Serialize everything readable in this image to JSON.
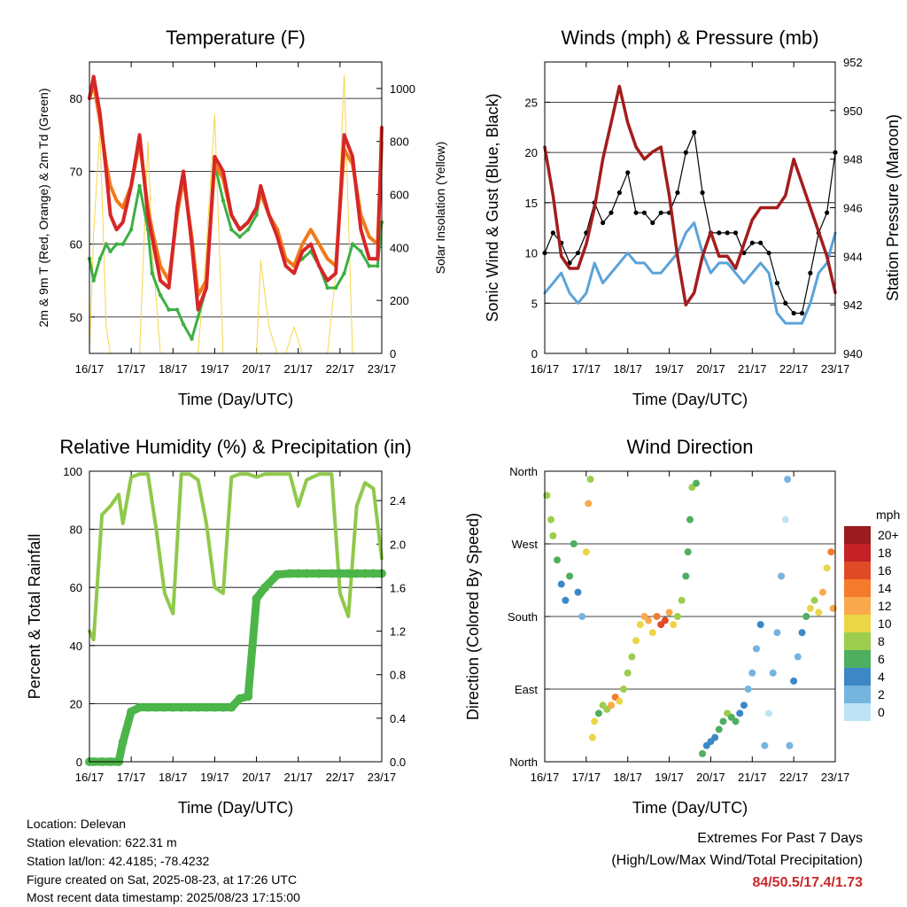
{
  "colors": {
    "temp_red": "#d62728",
    "temp_orange": "#f27a1a",
    "dewpoint_green": "#3cb043",
    "solar_yellow": "#f5d547",
    "wind_blue": "#5ba3d9",
    "gust_black": "#000000",
    "pressure_maroon": "#a31d1d",
    "rh_lightgreen": "#8fc94a",
    "precip_green": "#4cb54a",
    "extremes_red": "#c8282b"
  },
  "time_ticks": [
    "16/17",
    "17/17",
    "18/17",
    "19/17",
    "20/17",
    "21/17",
    "22/17",
    "23/17"
  ],
  "chart_data": [
    {
      "id": "temperature",
      "type": "line",
      "title": "Temperature (F)",
      "xlabel": "Time (Day/UTC)",
      "ylabel": "2m & 9m T (Red, Orange) & 2m Td (Green)",
      "ylabel_right": "Solar Insolation (Yellow)",
      "ylim": [
        45,
        85
      ],
      "yticks": [
        50,
        60,
        70,
        80
      ],
      "ylim_right": [
        0,
        1100
      ],
      "yticks_right": [
        0,
        200,
        400,
        600,
        800,
        1000
      ],
      "x": [
        0,
        0.1,
        0.25,
        0.4,
        0.5,
        0.65,
        0.8,
        1.0,
        1.2,
        1.4,
        1.5,
        1.7,
        1.9,
        2.1,
        2.25,
        2.45,
        2.6,
        2.8,
        3.0,
        3.2,
        3.4,
        3.6,
        3.8,
        4.0,
        4.1,
        4.3,
        4.5,
        4.7,
        4.9,
        5.1,
        5.3,
        5.5,
        5.7,
        5.9,
        6.1,
        6.3,
        6.5,
        6.7,
        6.9,
        7.0
      ],
      "series": [
        {
          "name": "2m T",
          "color": "#d62728",
          "values": [
            80,
            83,
            78,
            70,
            64,
            62,
            63,
            68,
            75,
            64,
            61,
            55,
            54,
            65,
            70,
            60,
            51,
            54,
            72,
            70,
            64,
            62,
            63,
            65,
            68,
            64,
            61,
            57,
            56,
            59,
            60,
            57,
            55,
            56,
            75,
            72,
            62,
            58,
            58,
            76
          ]
        },
        {
          "name": "9m T",
          "color": "#f27a1a",
          "values": [
            80,
            82,
            77,
            71,
            68,
            66,
            65,
            68,
            74,
            65,
            62,
            57,
            55,
            64,
            69,
            61,
            53,
            55,
            71,
            69,
            64,
            62,
            63,
            65,
            67,
            64,
            62,
            58,
            57,
            60,
            62,
            60,
            58,
            57,
            73,
            71,
            64,
            61,
            60,
            74
          ]
        },
        {
          "name": "2m Td",
          "color": "#3cb043",
          "values": [
            58,
            55,
            58,
            60,
            59,
            60,
            60,
            62,
            68,
            62,
            56,
            53,
            51,
            51,
            49,
            47,
            50,
            54,
            71,
            66,
            62,
            61,
            62,
            64,
            67,
            64,
            62,
            58,
            57,
            58,
            59,
            57,
            54,
            54,
            56,
            60,
            59,
            57,
            57,
            63
          ]
        },
        {
          "name": "Solar Insolation",
          "color": "#f5d547",
          "axis": "right",
          "values": [
            0,
            450,
            850,
            100,
            0,
            0,
            0,
            0,
            0,
            800,
            400,
            0,
            0,
            0,
            0,
            0,
            0,
            400,
            900,
            0,
            0,
            0,
            0,
            0,
            350,
            100,
            0,
            0,
            100,
            0,
            0,
            0,
            0,
            300,
            1050,
            0,
            0,
            0,
            0,
            0
          ]
        }
      ]
    },
    {
      "id": "winds",
      "type": "line",
      "title": "Winds (mph) & Pressure (mb)",
      "xlabel": "Time (Day/UTC)",
      "ylabel": "Sonic Wind & Gust (Blue, Black)",
      "ylabel_right": "Station Pressure (Maroon)",
      "ylim": [
        0,
        29
      ],
      "yticks": [
        0,
        5,
        10,
        15,
        20,
        25
      ],
      "ylim_right": [
        940,
        952
      ],
      "yticks_right": [
        940,
        942,
        944,
        946,
        948,
        950,
        952
      ],
      "x": [
        0,
        0.2,
        0.4,
        0.6,
        0.8,
        1.0,
        1.2,
        1.4,
        1.6,
        1.8,
        2.0,
        2.2,
        2.4,
        2.6,
        2.8,
        3.0,
        3.2,
        3.4,
        3.6,
        3.8,
        4.0,
        4.2,
        4.4,
        4.6,
        4.8,
        5.0,
        5.2,
        5.4,
        5.6,
        5.8,
        6.0,
        6.2,
        6.4,
        6.6,
        6.8,
        7.0
      ],
      "series": [
        {
          "name": "Sonic Wind",
          "color": "#5ba3d9",
          "values": [
            6,
            7,
            8,
            6,
            5,
            6,
            9,
            7,
            8,
            9,
            10,
            9,
            9,
            8,
            8,
            9,
            10,
            12,
            13,
            10,
            8,
            9,
            9,
            8,
            7,
            8,
            9,
            8,
            4,
            3,
            3,
            3,
            5,
            8,
            9,
            12
          ]
        },
        {
          "name": "Gust",
          "color": "#000000",
          "values": [
            10,
            12,
            11,
            9,
            10,
            12,
            15,
            13,
            14,
            16,
            18,
            14,
            14,
            13,
            14,
            14,
            16,
            20,
            22,
            16,
            12,
            12,
            12,
            12,
            10,
            11,
            11,
            10,
            7,
            5,
            4,
            4,
            8,
            12,
            14,
            20
          ]
        },
        {
          "name": "Station Pressure",
          "color": "#a31d1d",
          "axis": "right",
          "values": [
            948.5,
            946.5,
            944,
            943.5,
            943.5,
            944.5,
            946,
            948,
            949.5,
            951,
            949.5,
            948.5,
            948,
            948.3,
            948.5,
            946.5,
            944,
            942,
            942.5,
            944,
            945,
            944,
            944,
            943.5,
            944.5,
            945.5,
            946,
            946,
            946,
            946.5,
            948,
            947,
            946,
            945,
            944,
            942.5
          ]
        }
      ]
    },
    {
      "id": "humidity",
      "type": "line",
      "title": "Relative Humidity (%) & Precipitation (in)",
      "xlabel": "Time (Day/UTC)",
      "ylabel": "Percent & Total Rainfall",
      "ylim": [
        0,
        100
      ],
      "yticks": [
        0,
        20,
        40,
        60,
        80,
        100
      ],
      "ylim_right": [
        0,
        2.67
      ],
      "yticks_right": [
        0.0,
        0.4,
        0.8,
        1.2,
        1.6,
        2.0,
        2.4
      ],
      "x": [
        0,
        0.1,
        0.3,
        0.5,
        0.7,
        0.8,
        1.0,
        1.2,
        1.4,
        1.6,
        1.8,
        2.0,
        2.2,
        2.4,
        2.6,
        2.8,
        3.0,
        3.2,
        3.4,
        3.6,
        3.8,
        4.0,
        4.2,
        4.5,
        4.8,
        5.0,
        5.2,
        5.5,
        5.8,
        6.0,
        6.2,
        6.4,
        6.6,
        6.8,
        7.0
      ],
      "series": [
        {
          "name": "Relative Humidity",
          "color": "#8fc94a",
          "values": [
            45,
            42,
            85,
            88,
            92,
            82,
            98,
            99,
            99,
            80,
            58,
            51,
            99,
            99,
            97,
            82,
            60,
            58,
            98,
            99,
            99,
            98,
            99,
            99,
            99,
            88,
            97,
            99,
            99,
            58,
            50,
            88,
            96,
            94,
            70
          ]
        },
        {
          "name": "Total Rainfall",
          "color": "#4cb54a",
          "axis": "right",
          "values": [
            0,
            0,
            0,
            0,
            0,
            0.18,
            0.46,
            0.5,
            0.5,
            0.5,
            0.5,
            0.5,
            0.5,
            0.5,
            0.5,
            0.5,
            0.5,
            0.5,
            0.5,
            0.58,
            0.6,
            1.5,
            1.6,
            1.72,
            1.73,
            1.73,
            1.73,
            1.73,
            1.73,
            1.73,
            1.73,
            1.73,
            1.73,
            1.73,
            1.73
          ]
        }
      ]
    },
    {
      "id": "direction",
      "type": "scatter",
      "title": "Wind Direction",
      "xlabel": "Time (Day/UTC)",
      "ylabel": "Direction (Colored By Speed)",
      "ylim": [
        0,
        360
      ],
      "yticks": [
        0,
        90,
        180,
        270,
        360
      ],
      "ytick_labels": [
        "North",
        "East",
        "South",
        "West",
        "North"
      ],
      "legend_title": "mph",
      "legend_levels": [
        "20+",
        "18",
        "16",
        "14",
        "12",
        "10",
        "8",
        "6",
        "4",
        "2",
        "0"
      ],
      "legend_colors": [
        "#9b1b1e",
        "#c62126",
        "#e04b25",
        "#f47a2c",
        "#faa94c",
        "#ead647",
        "#9ccd4f",
        "#4fae60",
        "#3d87c6",
        "#76b4e0",
        "#bde3f5"
      ],
      "points": [
        {
          "x": 0.05,
          "dir": 330,
          "speed": 8
        },
        {
          "x": 0.15,
          "dir": 300,
          "speed": 8
        },
        {
          "x": 0.2,
          "dir": 280,
          "speed": 9
        },
        {
          "x": 0.3,
          "dir": 250,
          "speed": 6
        },
        {
          "x": 0.4,
          "dir": 220,
          "speed": 5
        },
        {
          "x": 0.5,
          "dir": 200,
          "speed": 4
        },
        {
          "x": 0.6,
          "dir": 230,
          "speed": 6
        },
        {
          "x": 0.7,
          "dir": 270,
          "speed": 7
        },
        {
          "x": 0.8,
          "dir": 210,
          "speed": 4
        },
        {
          "x": 0.9,
          "dir": 180,
          "speed": 3
        },
        {
          "x": 1.0,
          "dir": 260,
          "speed": 10
        },
        {
          "x": 1.05,
          "dir": 320,
          "speed": 12
        },
        {
          "x": 1.1,
          "dir": 350,
          "speed": 9
        },
        {
          "x": 1.15,
          "dir": 30,
          "speed": 10
        },
        {
          "x": 1.2,
          "dir": 50,
          "speed": 11
        },
        {
          "x": 1.3,
          "dir": 60,
          "speed": 7
        },
        {
          "x": 1.4,
          "dir": 70,
          "speed": 8
        },
        {
          "x": 1.5,
          "dir": 65,
          "speed": 9
        },
        {
          "x": 1.6,
          "dir": 70,
          "speed": 12
        },
        {
          "x": 1.7,
          "dir": 80,
          "speed": 14
        },
        {
          "x": 1.8,
          "dir": 75,
          "speed": 10
        },
        {
          "x": 1.9,
          "dir": 90,
          "speed": 8
        },
        {
          "x": 2.0,
          "dir": 110,
          "speed": 9
        },
        {
          "x": 2.1,
          "dir": 130,
          "speed": 8
        },
        {
          "x": 2.2,
          "dir": 150,
          "speed": 10
        },
        {
          "x": 2.3,
          "dir": 170,
          "speed": 11
        },
        {
          "x": 2.4,
          "dir": 180,
          "speed": 13
        },
        {
          "x": 2.5,
          "dir": 175,
          "speed": 12
        },
        {
          "x": 2.6,
          "dir": 160,
          "speed": 10
        },
        {
          "x": 2.7,
          "dir": 180,
          "speed": 14
        },
        {
          "x": 2.8,
          "dir": 170,
          "speed": 17
        },
        {
          "x": 2.9,
          "dir": 175,
          "speed": 16
        },
        {
          "x": 3.0,
          "dir": 185,
          "speed": 12
        },
        {
          "x": 3.1,
          "dir": 170,
          "speed": 10
        },
        {
          "x": 3.2,
          "dir": 180,
          "speed": 8
        },
        {
          "x": 3.3,
          "dir": 200,
          "speed": 8
        },
        {
          "x": 3.4,
          "dir": 230,
          "speed": 7
        },
        {
          "x": 3.45,
          "dir": 260,
          "speed": 6
        },
        {
          "x": 3.5,
          "dir": 300,
          "speed": 7
        },
        {
          "x": 3.55,
          "dir": 340,
          "speed": 8
        },
        {
          "x": 3.65,
          "dir": 345,
          "speed": 7
        },
        {
          "x": 3.8,
          "dir": 10,
          "speed": 6
        },
        {
          "x": 3.9,
          "dir": 20,
          "speed": 5
        },
        {
          "x": 4.0,
          "dir": 25,
          "speed": 4
        },
        {
          "x": 4.1,
          "dir": 30,
          "speed": 5
        },
        {
          "x": 4.2,
          "dir": 40,
          "speed": 6
        },
        {
          "x": 4.3,
          "dir": 50,
          "speed": 7
        },
        {
          "x": 4.4,
          "dir": 60,
          "speed": 8
        },
        {
          "x": 4.5,
          "dir": 55,
          "speed": 6
        },
        {
          "x": 4.6,
          "dir": 50,
          "speed": 7
        },
        {
          "x": 4.7,
          "dir": 60,
          "speed": 5
        },
        {
          "x": 4.8,
          "dir": 70,
          "speed": 4
        },
        {
          "x": 4.9,
          "dir": 90,
          "speed": 3
        },
        {
          "x": 5.0,
          "dir": 110,
          "speed": 2
        },
        {
          "x": 5.1,
          "dir": 140,
          "speed": 3
        },
        {
          "x": 5.2,
          "dir": 170,
          "speed": 4
        },
        {
          "x": 5.3,
          "dir": 20,
          "speed": 2
        },
        {
          "x": 5.4,
          "dir": 60,
          "speed": 1
        },
        {
          "x": 5.5,
          "dir": 110,
          "speed": 2
        },
        {
          "x": 5.6,
          "dir": 160,
          "speed": 3
        },
        {
          "x": 5.7,
          "dir": 230,
          "speed": 2
        },
        {
          "x": 5.8,
          "dir": 300,
          "speed": 1
        },
        {
          "x": 5.85,
          "dir": 350,
          "speed": 2
        },
        {
          "x": 5.9,
          "dir": 20,
          "speed": 3
        },
        {
          "x": 6.0,
          "dir": 100,
          "speed": 4
        },
        {
          "x": 6.1,
          "dir": 130,
          "speed": 3
        },
        {
          "x": 6.2,
          "dir": 160,
          "speed": 5
        },
        {
          "x": 6.3,
          "dir": 180,
          "speed": 7
        },
        {
          "x": 6.4,
          "dir": 190,
          "speed": 10
        },
        {
          "x": 6.5,
          "dir": 200,
          "speed": 9
        },
        {
          "x": 6.6,
          "dir": 185,
          "speed": 11
        },
        {
          "x": 6.7,
          "dir": 210,
          "speed": 12
        },
        {
          "x": 6.8,
          "dir": 240,
          "speed": 10
        },
        {
          "x": 6.9,
          "dir": 260,
          "speed": 14
        },
        {
          "x": 6.95,
          "dir": 190,
          "speed": 12
        }
      ]
    }
  ],
  "station": {
    "location": "Location: Delevan",
    "elevation": "Station elevation: 622.31 m",
    "latlon": "Station lat/lon: 42.4185; -78.4232",
    "created": "Figure created on Sat, 2025-08-23, at 17:26 UTC",
    "latest": "Most recent data timestamp: 2025/08/23 17:15:00"
  },
  "extremes": {
    "title": "Extremes For Past 7 Days",
    "subtitle": "(High/Low/Max Wind/Total Precipitation)",
    "values": "84/50.5/17.4/1.73"
  }
}
